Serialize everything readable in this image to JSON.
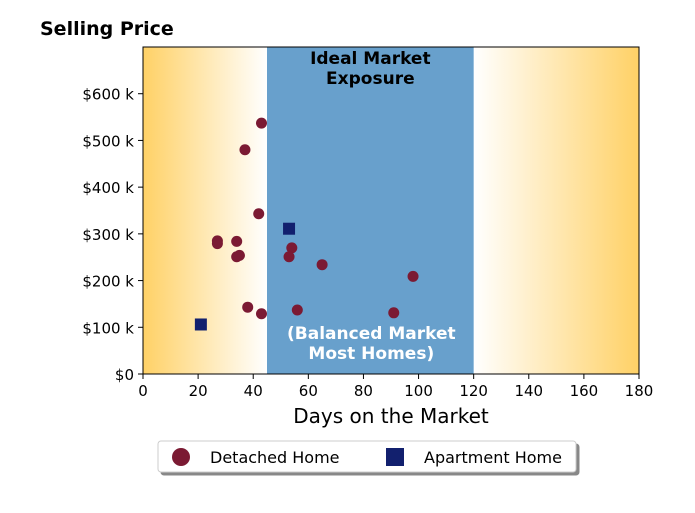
{
  "chart_data": {
    "type": "scatter",
    "title": "Selling Price",
    "xlabel": "Days on the Market",
    "ylabel": "",
    "xlim": [
      0,
      180
    ],
    "ylim": [
      0,
      700000
    ],
    "x_ticks": [
      0,
      20,
      40,
      60,
      80,
      100,
      120,
      140,
      160,
      180
    ],
    "y_ticks": [
      {
        "value": 0,
        "label": "$0"
      },
      {
        "value": 100000,
        "label": "$100 k"
      },
      {
        "value": 200000,
        "label": "$200 k"
      },
      {
        "value": 300000,
        "label": "$300 k"
      },
      {
        "value": 400000,
        "label": "$400 k"
      },
      {
        "value": 500000,
        "label": "$500 k"
      },
      {
        "value": 600000,
        "label": "$600 k"
      }
    ],
    "grid": false,
    "legend_position": "bottom-center",
    "background": {
      "gradient_color": "#ffd166",
      "left_gradient_x": [
        0,
        45
      ],
      "right_gradient_x": [
        120,
        180
      ]
    },
    "regions": [
      {
        "x_start": 45,
        "x_end": 120,
        "color": "#68a0cc",
        "top_label_lines": [
          "Ideal Market",
          "Exposure"
        ],
        "top_label_color": "#000000",
        "bottom_label_lines": [
          "(Balanced Market",
          "Most Homes)"
        ],
        "bottom_label_color": "#ffffff"
      }
    ],
    "series": [
      {
        "name": "Detached Home",
        "marker": "circle",
        "color": "#7b1a33",
        "points": [
          {
            "x": 43,
            "y": 537000
          },
          {
            "x": 37,
            "y": 480000
          },
          {
            "x": 42,
            "y": 343000
          },
          {
            "x": 27,
            "y": 285000
          },
          {
            "x": 27,
            "y": 279000
          },
          {
            "x": 34,
            "y": 284000
          },
          {
            "x": 34,
            "y": 251000
          },
          {
            "x": 35,
            "y": 254000
          },
          {
            "x": 54,
            "y": 270000
          },
          {
            "x": 53,
            "y": 251000
          },
          {
            "x": 65,
            "y": 234000
          },
          {
            "x": 98,
            "y": 209000
          },
          {
            "x": 38,
            "y": 143000
          },
          {
            "x": 43,
            "y": 129000
          },
          {
            "x": 56,
            "y": 137000
          },
          {
            "x": 91,
            "y": 131000
          }
        ]
      },
      {
        "name": "Apartment Home",
        "marker": "square",
        "color": "#12206e",
        "points": [
          {
            "x": 53,
            "y": 311000
          },
          {
            "x": 21,
            "y": 106000
          }
        ]
      }
    ]
  }
}
